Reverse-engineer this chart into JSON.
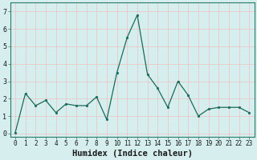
{
  "x": [
    0,
    1,
    2,
    3,
    4,
    5,
    6,
    7,
    8,
    9,
    10,
    11,
    12,
    13,
    14,
    15,
    16,
    17,
    18,
    19,
    20,
    21,
    22,
    23
  ],
  "y": [
    0.05,
    2.3,
    1.6,
    1.9,
    1.2,
    1.7,
    1.6,
    1.6,
    2.1,
    0.8,
    3.5,
    5.5,
    6.8,
    3.4,
    2.6,
    1.5,
    3.0,
    2.2,
    1.0,
    1.4,
    1.5,
    1.5,
    1.5,
    1.2
  ],
  "xlabel": "Humidex (Indice chaleur)",
  "ylim": [
    -0.2,
    7.5
  ],
  "xlim": [
    -0.5,
    23.5
  ],
  "line_color": "#1b6b5a",
  "marker_color": "#1b6b5a",
  "bg_color": "#d6eeee",
  "grid_color": "#b8d8d8",
  "yticks": [
    0,
    1,
    2,
    3,
    4,
    5,
    6,
    7
  ],
  "xticks": [
    0,
    1,
    2,
    3,
    4,
    5,
    6,
    7,
    8,
    9,
    10,
    11,
    12,
    13,
    14,
    15,
    16,
    17,
    18,
    19,
    20,
    21,
    22,
    23
  ],
  "xlabel_fontsize": 7.5,
  "tick_fontsize": 5.5,
  "spine_color": "#2a7a6a"
}
